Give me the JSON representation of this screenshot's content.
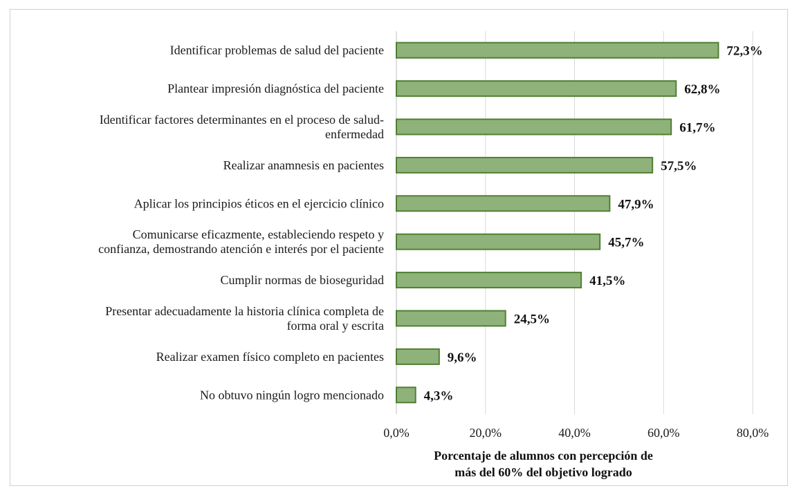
{
  "chart_data": {
    "type": "bar",
    "orientation": "horizontal",
    "categories": [
      [
        "Identificar problemas de salud del paciente"
      ],
      [
        "Plantear impresión diagnóstica del paciente"
      ],
      [
        "Identificar factores determinantes en el proceso de salud-",
        "enfermedad"
      ],
      [
        "Realizar anamnesis en pacientes"
      ],
      [
        "Aplicar los principios éticos en el ejercicio clínico"
      ],
      [
        "Comunicarse eficazmente, estableciendo respeto y",
        "confianza, demostrando atención e interés por el paciente"
      ],
      [
        "Cumplir normas de bioseguridad"
      ],
      [
        "Presentar adecuadamente la historia clínica completa de",
        "forma oral y escrita"
      ],
      [
        "Realizar examen físico completo en pacientes"
      ],
      [
        "No obtuvo ningún logro mencionado"
      ]
    ],
    "values": [
      72.3,
      62.8,
      61.7,
      57.5,
      47.9,
      45.7,
      41.5,
      24.5,
      9.6,
      4.3
    ],
    "value_labels": [
      "72,3%",
      "62,8%",
      "61,7%",
      "57,5%",
      "47,9%",
      "45,7%",
      "41,5%",
      "24,5%",
      "9,6%",
      "4,3%"
    ],
    "xlim": [
      0,
      80
    ],
    "x_ticks": [
      0,
      20,
      40,
      60,
      80
    ],
    "x_tick_labels": [
      "0,0%",
      "20,0%",
      "40,0%",
      "60,0%",
      "80,0%"
    ],
    "xlabel": [
      "Porcentaje de alumnos con percepción de",
      "más del 60% del objetivo logrado"
    ],
    "title": "",
    "grid": "vertical",
    "bar_fill": "#8fb27a",
    "bar_stroke": "#4f7f32",
    "grid_color": "#d9d9d9"
  }
}
